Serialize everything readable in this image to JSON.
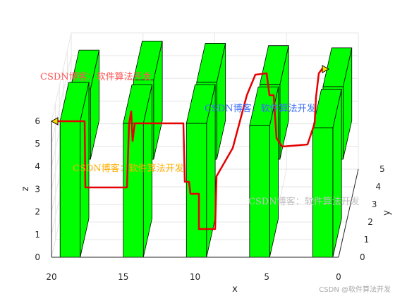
{
  "chart_data": {
    "type": "3d-path",
    "xlabel": "x",
    "ylabel": "y",
    "zlabel": "z",
    "xlim": [
      0,
      20
    ],
    "ylim": [
      0,
      5
    ],
    "zlim": [
      0,
      6
    ],
    "x_ticks": [
      "20",
      "15",
      "10",
      "5",
      "0"
    ],
    "y_ticks": [
      "0",
      "1",
      "2",
      "3",
      "4",
      "5"
    ],
    "z_ticks": [
      "0",
      "1",
      "2",
      "3",
      "4",
      "5",
      "6"
    ],
    "grid": true,
    "obstacle_color": "#00ff00",
    "path_color": "#e60000",
    "marker_color": "#ffd800",
    "obstacles": [
      {
        "row": "back",
        "x": 18,
        "z_top": 5.4
      },
      {
        "row": "back",
        "x": 13.6,
        "z_top": 5.8
      },
      {
        "row": "back",
        "x": 9.2,
        "z_top": 5.7
      },
      {
        "row": "back",
        "x": 4.8,
        "z_top": 5.6
      },
      {
        "row": "back",
        "x": 0.4,
        "z_top": 5.5
      },
      {
        "row": "front",
        "x": 18,
        "z_top": 6.0
      },
      {
        "row": "front",
        "x": 13.6,
        "z_top": 5.9
      },
      {
        "row": "front",
        "x": 9.2,
        "z_top": 5.9
      },
      {
        "row": "front",
        "x": 4.8,
        "z_top": 5.8
      },
      {
        "row": "front",
        "x": 0.4,
        "z_top": 5.7
      }
    ]
  },
  "watermarks": [
    {
      "text": "CSDN博客：软件算法开发",
      "color": "#ff5555"
    },
    {
      "text": "CSDN博客：软件算法开发",
      "color": "#3b6cf6"
    },
    {
      "text": "CSDN博客：软件算法开发",
      "color": "#ffb000"
    },
    {
      "text": "CSDN博客：软件算法开发",
      "color": "#bfbfbf"
    }
  ],
  "credit": "CSDN @软件算法开发"
}
